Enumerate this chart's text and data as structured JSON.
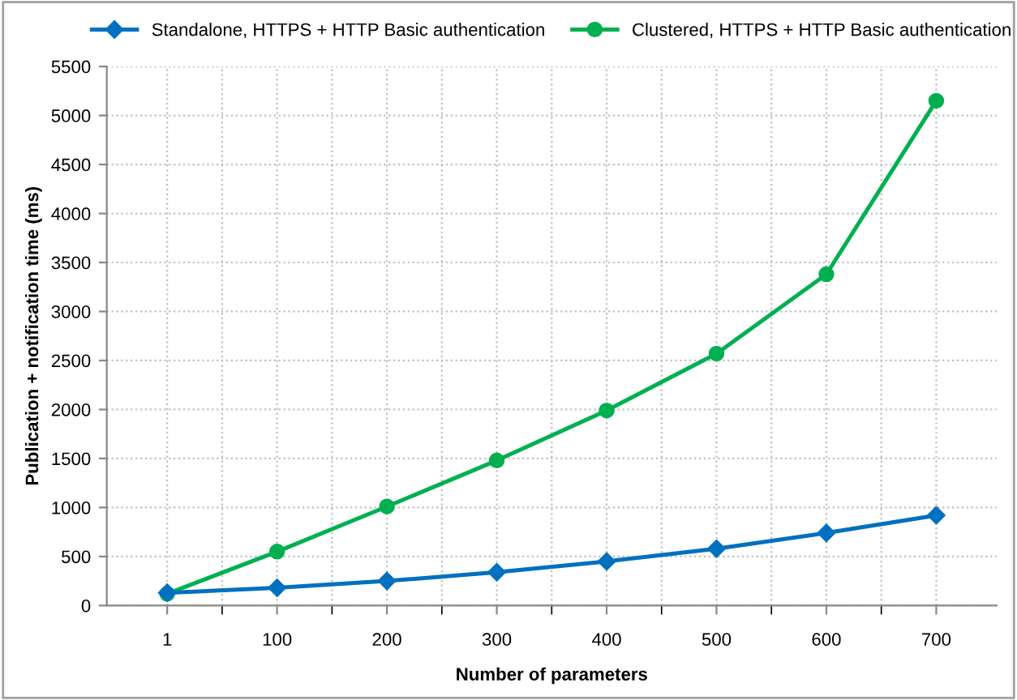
{
  "chart_data": {
    "type": "line",
    "xlabel": "Number of parameters",
    "ylabel": "Publication + notification time (ms)",
    "categories": [
      "1",
      "100",
      "200",
      "300",
      "400",
      "500",
      "600",
      "700"
    ],
    "series": [
      {
        "name": "Standalone, HTTPS + HTTP Basic authentication",
        "color": "#0070c0",
        "marker": "diamond",
        "values": [
          130,
          180,
          250,
          340,
          450,
          580,
          740,
          920
        ]
      },
      {
        "name": "Clustered, HTTPS + HTTP Basic authentication",
        "color": "#00b050",
        "marker": "circle",
        "values": [
          120,
          550,
          1010,
          1480,
          1990,
          2570,
          3380,
          5150
        ],
        "errors": [
          null,
          null,
          null,
          null,
          null,
          null,
          null,
          30
        ]
      }
    ],
    "ylim": [
      0,
      5500
    ],
    "yticks": [
      0,
      500,
      1000,
      1500,
      2000,
      2500,
      3000,
      3500,
      4000,
      4500,
      5000,
      5500
    ],
    "grid": true,
    "legend": "top",
    "line_style": "solid"
  }
}
